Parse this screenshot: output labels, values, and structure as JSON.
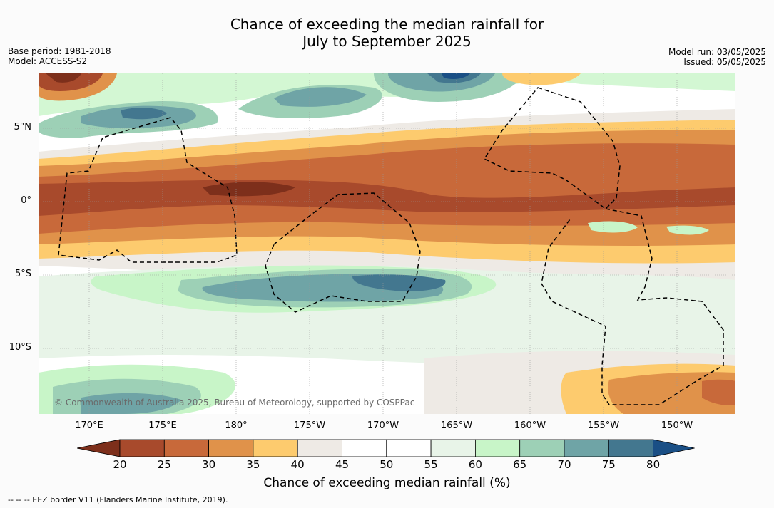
{
  "title_line1": "Chance of exceeding the median rainfall for",
  "title_line2": "July to September 2025",
  "meta_left": {
    "base_period": "Base period: 1981-2018",
    "model": "Model: ACCESS-S2"
  },
  "meta_right": {
    "model_run": "Model run: 03/05/2025",
    "issued": "Issued: 05/05/2025"
  },
  "copyright": "© Commonwealth of Australia 2025, Bureau of Meteorology, supported by COSPPac",
  "lat_labels": [
    "5°N",
    "0°",
    "5°S",
    "10°S"
  ],
  "lon_labels": [
    "170°E",
    "175°E",
    "180°",
    "175°W",
    "170°W",
    "165°W",
    "160°W",
    "155°W",
    "150°W"
  ],
  "colorbar": {
    "title": "Chance of exceeding median rainfall (%)",
    "ticks": [
      "20",
      "25",
      "30",
      "35",
      "40",
      "45",
      "50",
      "55",
      "60",
      "65",
      "70",
      "75",
      "80"
    ],
    "colors": [
      "#7d2f1b",
      "#a84a2c",
      "#c8693a",
      "#e0924a",
      "#fdcb6e",
      "#eeeae5",
      "#ffffff",
      "#ffffff",
      "#e8f4e8",
      "#c8f5c8",
      "#9dd0b6",
      "#6fa4a6",
      "#43778f",
      "#1a4f85"
    ]
  },
  "footnote": "-- -- -- EEZ border V11 (Flanders Marine Institute, 2019)."
}
